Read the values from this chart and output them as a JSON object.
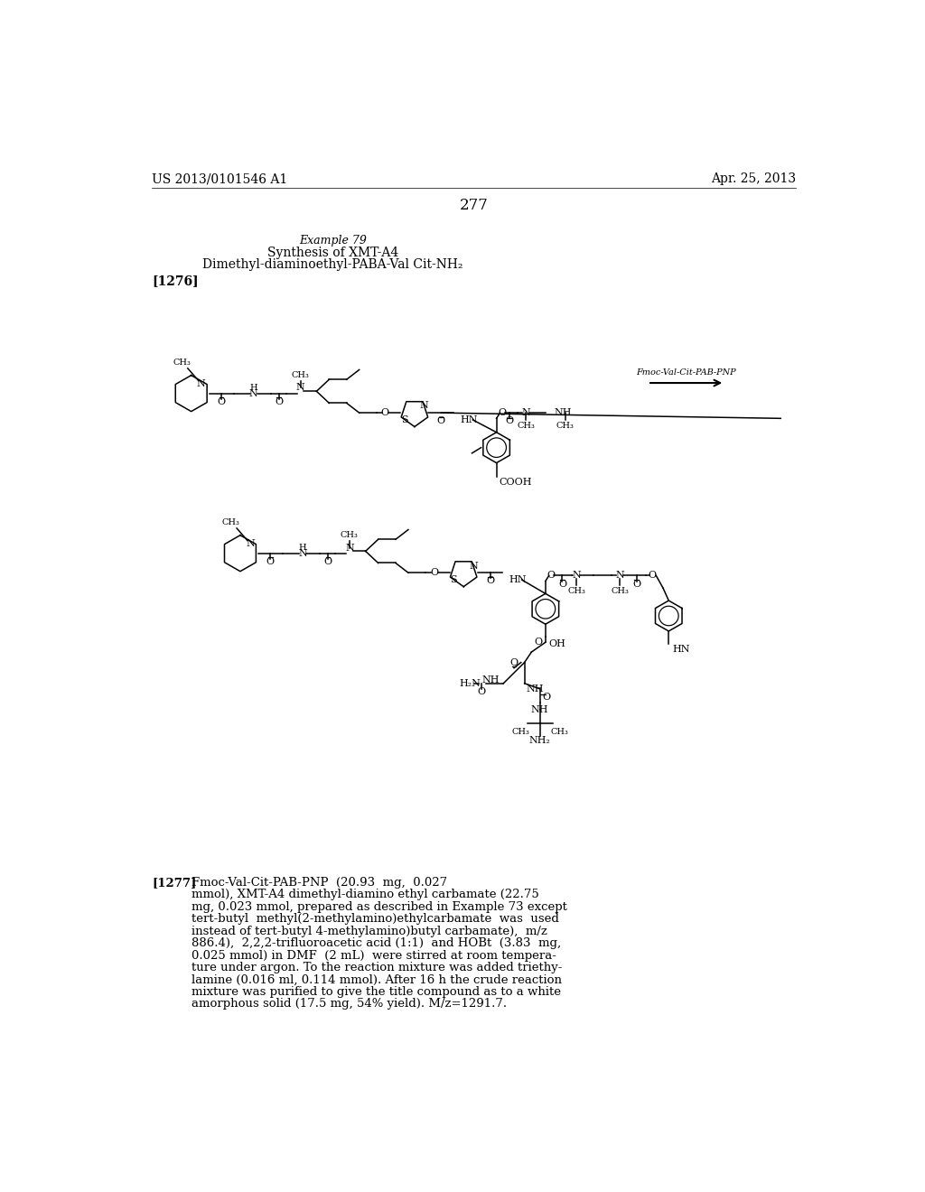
{
  "background_color": "#ffffff",
  "page_number": "277",
  "header_left": "US 2013/0101546 A1",
  "header_right": "Apr. 25, 2013",
  "example_title": "Example 79",
  "subtitle_line1": "Synthesis of XMT-A4",
  "subtitle_line2": "Dimethyl-diaminoethyl-PABA-Val Cit-NH₂",
  "bracket_label": "[1276]",
  "reaction_arrow_label": "Fmoc-Val-Cit-PAB-PNP",
  "paragraph_label": "[1277]",
  "para_lines": [
    "Fmoc-Val-Cit-PAB-PNP  (20.93  mg,  0.027",
    "mmol), XMT-A4 dimethyl-diamino ethyl carbamate (22.75",
    "mg, 0.023 mmol, prepared as described in Example 73 except",
    "tert-butyl  methyl(2-methylamino)ethylcarbamate  was  used",
    "instead of tert-butyl 4-methylamino)butyl carbamate),  m/z",
    "886.4),  2,2,2-trifluoroacetic acid (1:1)  and HOBt  (3.83  mg,",
    "0.025 mmol) in DMF  (2 mL)  were stirred at room tempera-",
    "ture under argon. To the reaction mixture was added triethy-",
    "lamine (0.016 ml, 0.114 mmol). After 16 h the crude reaction",
    "mixture was purified to give the title compound as to a white",
    "amorphous solid (17.5 mg, 54% yield). M/z=1291.7."
  ]
}
